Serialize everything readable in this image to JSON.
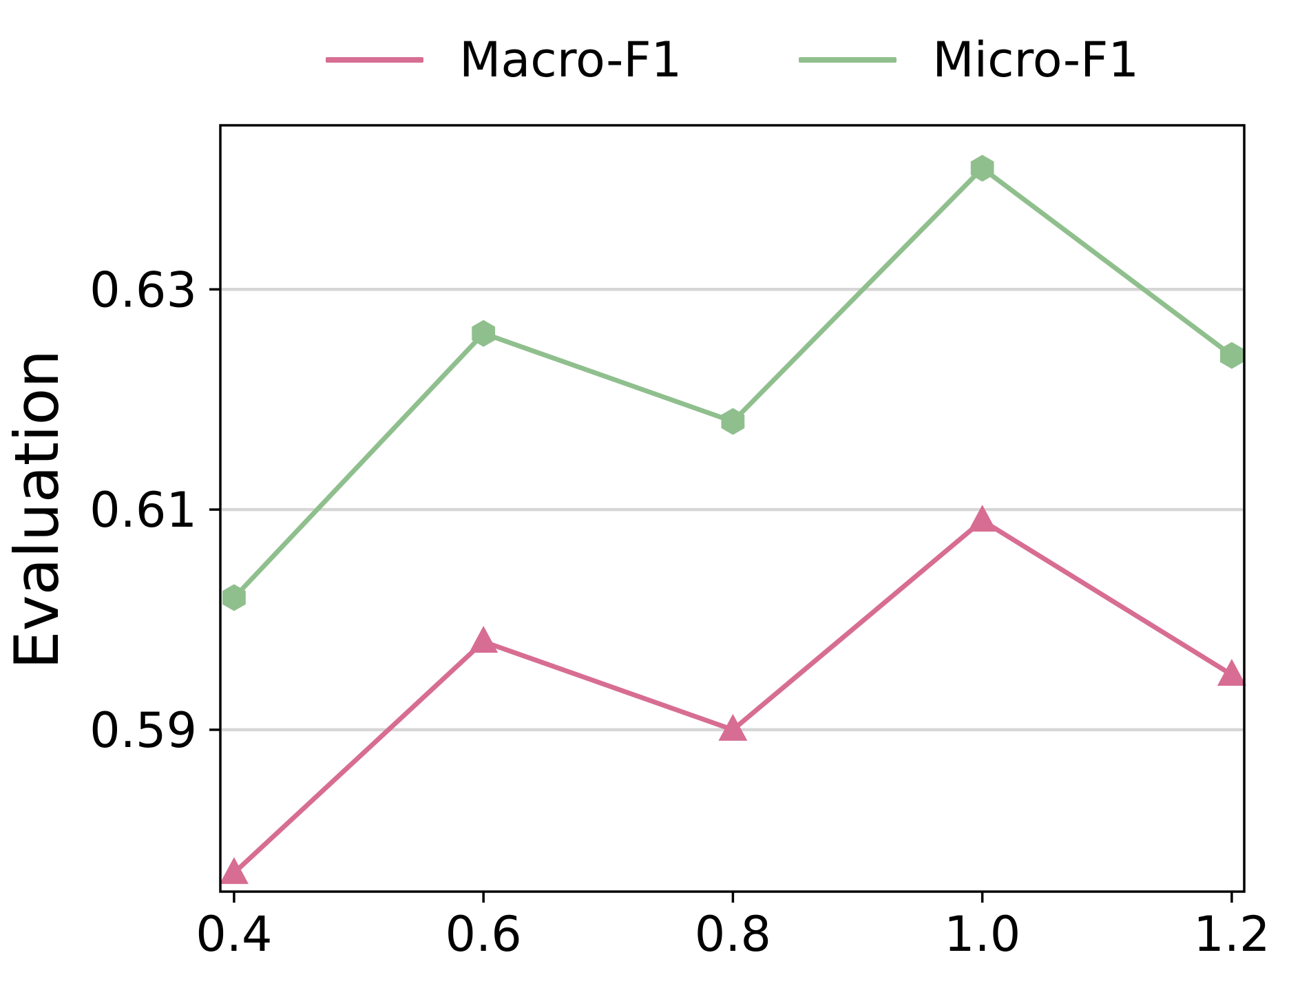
{
  "figure": {
    "background": "#ffffff"
  },
  "legend": {
    "position": "top-center",
    "items": [
      {
        "label": "Macro-F1",
        "color": "#d76d92"
      },
      {
        "label": "Micro-F1",
        "color": "#90bf8e"
      }
    ]
  },
  "chart_data": {
    "type": "line",
    "title": "",
    "xlabel": "",
    "ylabel": "Evaluation",
    "x": [
      0.4,
      0.6,
      0.8,
      1.0,
      1.2
    ],
    "series": [
      {
        "name": "Macro-F1",
        "color": "#d76d92",
        "marker": "triangle",
        "values": [
          0.577,
          0.598,
          0.59,
          0.609,
          0.595
        ]
      },
      {
        "name": "Micro-F1",
        "color": "#90bf8e",
        "marker": "hexagon",
        "values": [
          0.602,
          0.626,
          0.618,
          0.641,
          0.624
        ]
      }
    ],
    "xlim": [
      0.389,
      1.21
    ],
    "ylim": [
      0.5753,
      0.6449
    ],
    "x_ticks": {
      "values": [
        0.4,
        0.6,
        0.8,
        1.0,
        1.2
      ],
      "labels": [
        "0.4",
        "0.6",
        "0.8",
        "1.0",
        "1.2"
      ]
    },
    "y_ticks": {
      "values": [
        0.59,
        0.61,
        0.63
      ],
      "labels": [
        "0.59",
        "0.61",
        "0.63"
      ]
    },
    "grid": {
      "axis": "y",
      "color": "#d6d6d6",
      "linewidth": 4.5
    },
    "spine_color": "#000000",
    "tick_color": "#000000",
    "line_width": 7,
    "legend_position": "top-center"
  }
}
